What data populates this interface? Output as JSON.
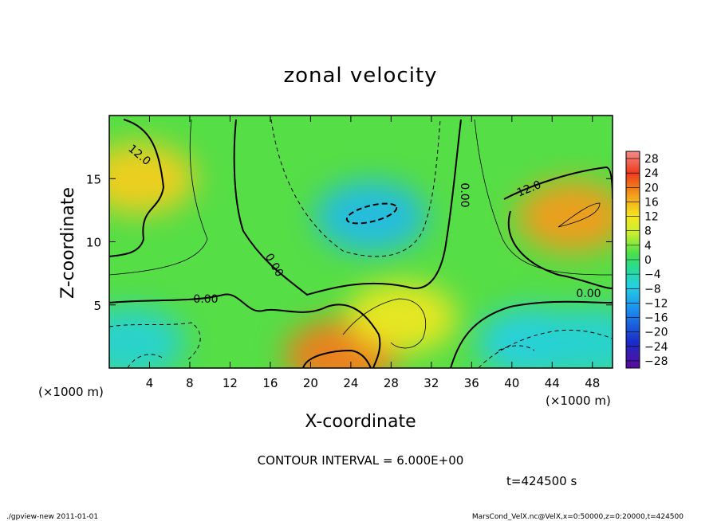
{
  "chart_data": {
    "type": "heatmap",
    "title": "zonal velocity",
    "xlabel": "X-coordinate",
    "ylabel": "Z-coordinate",
    "x_unit": "(×1000 m)",
    "y_unit": "(×1000 m)",
    "xlim": [
      0,
      50
    ],
    "ylim": [
      0,
      20
    ],
    "x_ticks": [
      "4",
      "8",
      "12",
      "16",
      "20",
      "24",
      "28",
      "32",
      "36",
      "40",
      "44",
      "48"
    ],
    "y_ticks": [
      "5",
      "10",
      "15"
    ],
    "colorbar": {
      "levels": [
        "28",
        "24",
        "20",
        "16",
        "12",
        "8",
        "4",
        "0",
        "−4",
        "−8",
        "−12",
        "−16",
        "−20",
        "−24",
        "−28"
      ],
      "range": [
        -30,
        30
      ]
    },
    "contour_labels": [
      "12.0",
      "12.0",
      "0.00",
      "0.00",
      "0.00",
      "0.00"
    ],
    "contour_interval": "CONTOUR INTERVAL = 6.000E+00",
    "time_label": "t=424500 s",
    "grid": false,
    "features": [
      {
        "x": 3,
        "z": 15,
        "value": 14
      },
      {
        "x": 46,
        "z": 12,
        "value": 18
      },
      {
        "x": 23,
        "z": 1,
        "value": 20
      },
      {
        "x": 29,
        "z": 4,
        "value": 11
      },
      {
        "x": 26,
        "z": 12,
        "value": -12
      },
      {
        "x": 2,
        "z": 2,
        "value": -9
      },
      {
        "x": 42,
        "z": 2,
        "value": -10
      },
      {
        "x": 48,
        "z": 2,
        "value": -9
      }
    ]
  },
  "footer": {
    "left": "./gpview-new  2011-01-01",
    "right": "MarsCond_VelX.nc@VelX,x=0:50000,z=0:20000,t=424500"
  }
}
